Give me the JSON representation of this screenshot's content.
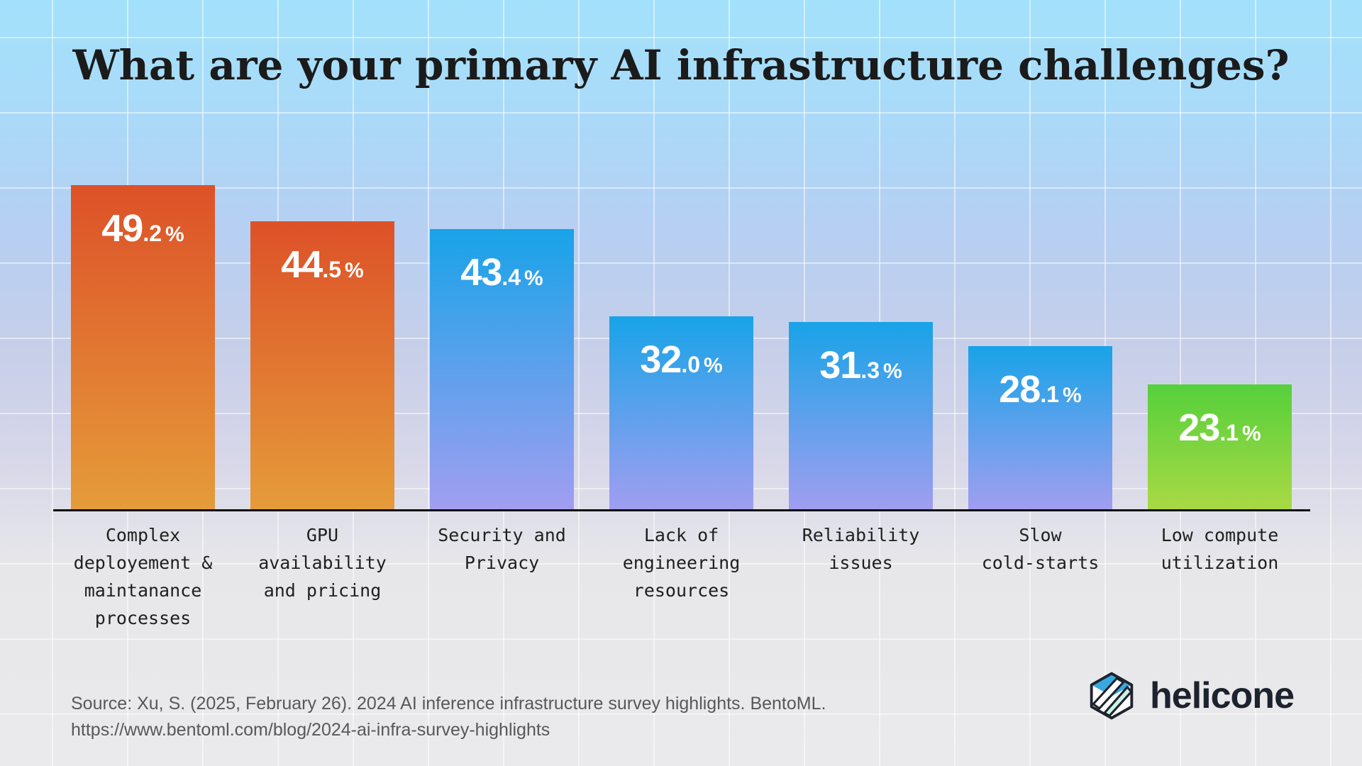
{
  "title": "What are your primary AI infrastructure challenges?",
  "chart_data": {
    "type": "bar",
    "title": "What are your primary AI infrastructure challenges?",
    "categories": [
      "Complex\ndeployement &\nmaintanance\nprocesses",
      "GPU\navailability\nand pricing",
      "Security and\nPrivacy",
      "Lack of\nengineering\nresources",
      "Reliability\nissues",
      "Slow\ncold-starts",
      "Low compute\nutilization"
    ],
    "values": [
      49.2,
      44.5,
      43.4,
      32.0,
      31.3,
      28.1,
      23.1
    ],
    "unit": "%",
    "xlabel": "",
    "ylabel": "",
    "ylim": [
      0,
      50
    ],
    "grid": true,
    "legend_position": "none",
    "value_labels_shown": true,
    "bar_gradients": [
      {
        "top": "#dd5128",
        "bottom": "#e59c3a"
      },
      {
        "top": "#dd5128",
        "bottom": "#e59c3a"
      },
      {
        "top": "#18a3e8",
        "bottom": "#a29ef0"
      },
      {
        "top": "#18a3e8",
        "bottom": "#a29ef0"
      },
      {
        "top": "#18a3e8",
        "bottom": "#a29ef0"
      },
      {
        "top": "#18a3e8",
        "bottom": "#a29ef0"
      },
      {
        "top": "#55d03b",
        "bottom": "#aad945"
      }
    ]
  },
  "source": {
    "line1": "Source: Xu, S. (2025, February 26). 2024 AI inference infrastructure survey highlights. BentoML.",
    "line2": "https://www.bentoml.com/blog/2024-ai-infra-survey-highlights"
  },
  "logo": {
    "wordmark": "helicone"
  },
  "theme": {
    "background_top": "#a3e1fb",
    "background_bottom": "#eaeaec",
    "grid_line": "rgba(255,255,255,0.5)",
    "axis_line": "#0c0c0c",
    "title_color": "#1b1b1b",
    "category_label_color": "#1f1f1f",
    "value_label_color": "#ffffff",
    "source_color": "#58585b",
    "logo_color": "#1d222e",
    "logo_cube_top": "#38a8e0",
    "logo_cube_stripe": "#c9f2e3"
  }
}
